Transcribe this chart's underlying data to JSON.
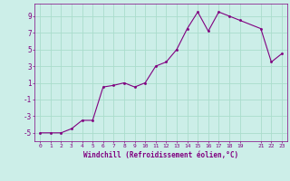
{
  "xlabel": "Windchill (Refroidissement éolien,°C)",
  "x": [
    0,
    1,
    2,
    3,
    4,
    5,
    6,
    7,
    8,
    9,
    10,
    11,
    12,
    13,
    14,
    15,
    16,
    17,
    18,
    19,
    21,
    22,
    23
  ],
  "y": [
    -5,
    -5,
    -5,
    -4.5,
    -3.5,
    -3.5,
    0.5,
    0.7,
    1.0,
    0.5,
    1.0,
    3.0,
    3.5,
    5.0,
    7.5,
    9.5,
    7.2,
    9.5,
    9.0,
    8.5,
    7.5,
    3.5,
    4.5
  ],
  "line_color": "#800080",
  "marker_color": "#800080",
  "bg_color": "#cceee8",
  "grid_color": "#aaddcc",
  "tick_color": "#800080",
  "label_color": "#800080",
  "xlim": [
    -0.5,
    23.5
  ],
  "ylim": [
    -6,
    10.5
  ],
  "xticks": [
    0,
    1,
    2,
    3,
    4,
    5,
    6,
    7,
    8,
    9,
    10,
    11,
    12,
    13,
    14,
    15,
    16,
    17,
    18,
    19,
    21,
    22,
    23
  ],
  "yticks": [
    -5,
    -3,
    -1,
    1,
    3,
    5,
    7,
    9
  ]
}
